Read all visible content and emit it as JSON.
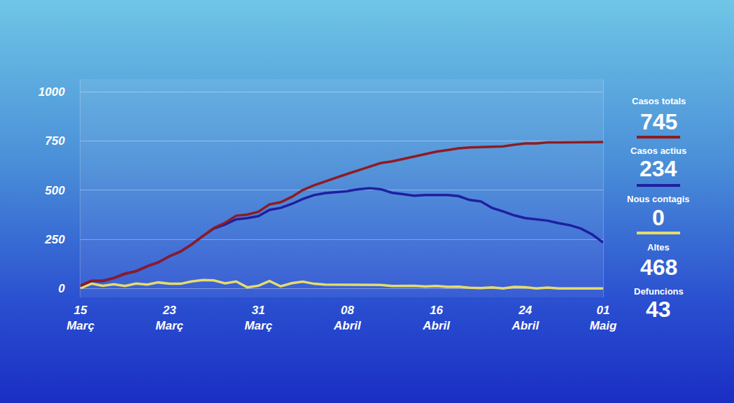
{
  "chart_data": {
    "type": "line",
    "categories": [
      "15 Març",
      null,
      null,
      null,
      null,
      null,
      null,
      null,
      "23 Març",
      null,
      null,
      null,
      null,
      null,
      null,
      null,
      "31 Març",
      null,
      null,
      null,
      null,
      null,
      null,
      null,
      "08 Abril",
      null,
      null,
      null,
      null,
      null,
      null,
      null,
      "16 Abril",
      null,
      null,
      null,
      null,
      null,
      null,
      null,
      "24 Abril",
      null,
      null,
      null,
      null,
      null,
      null,
      "01 Maig"
    ],
    "series": [
      {
        "name": "Casos totals",
        "color": "#8e1b22",
        "values": [
          14,
          39,
          39,
          53,
          75,
          88,
          113,
          133,
          164,
          188,
          224,
          267,
          308,
          334,
          370,
          376,
          390,
          428,
          439,
          466,
          501,
          525,
          545,
          564,
          583,
          601,
          620,
          638,
          646,
          659,
          673,
          683,
          696,
          704,
          713,
          717,
          719,
          723,
          723,
          731,
          738,
          738,
          743,
          743,
          743,
          745,
          745,
          745
        ]
      },
      {
        "name": "Casos actius",
        "color": "#1f1fa0",
        "values": [
          14,
          39,
          39,
          53,
          75,
          88,
          113,
          133,
          164,
          188,
          224,
          267,
          305,
          325,
          352,
          358,
          368,
          400,
          410,
          430,
          455,
          475,
          485,
          490,
          495,
          505,
          510,
          505,
          487,
          480,
          472,
          475,
          475,
          475,
          470,
          450,
          443,
          410,
          392,
          372,
          358,
          353,
          345,
          332,
          322,
          305,
          275,
          234
        ]
      },
      {
        "name": "Nous contagis",
        "color": "#e6dc6a",
        "values": [
          2,
          25,
          14,
          22,
          13,
          25,
          20,
          31,
          24,
          24,
          36,
          43,
          41,
          26,
          36,
          6,
          14,
          38,
          11,
          27,
          35,
          24,
          20,
          19,
          19,
          18,
          18,
          18,
          13,
          13,
          14,
          10,
          13,
          8,
          9,
          4,
          2,
          6,
          0,
          8,
          7,
          0,
          5,
          0,
          0,
          2,
          0,
          0
        ]
      }
    ],
    "ylim": [
      -45,
      1065
    ],
    "yticks": [
      0,
      250,
      500,
      750,
      1000
    ],
    "grid": true
  },
  "panel": [
    {
      "label": "Casos totals",
      "value": 745,
      "color": "#8e1b22"
    },
    {
      "label": "Casos actius",
      "value": 234,
      "color": "#1f1fa0"
    },
    {
      "label": "Nous contagis",
      "value": 0,
      "color": "#e6dc6a"
    },
    {
      "label": "Altes",
      "value": 468
    },
    {
      "label": "Defuncions",
      "value": 43
    }
  ]
}
